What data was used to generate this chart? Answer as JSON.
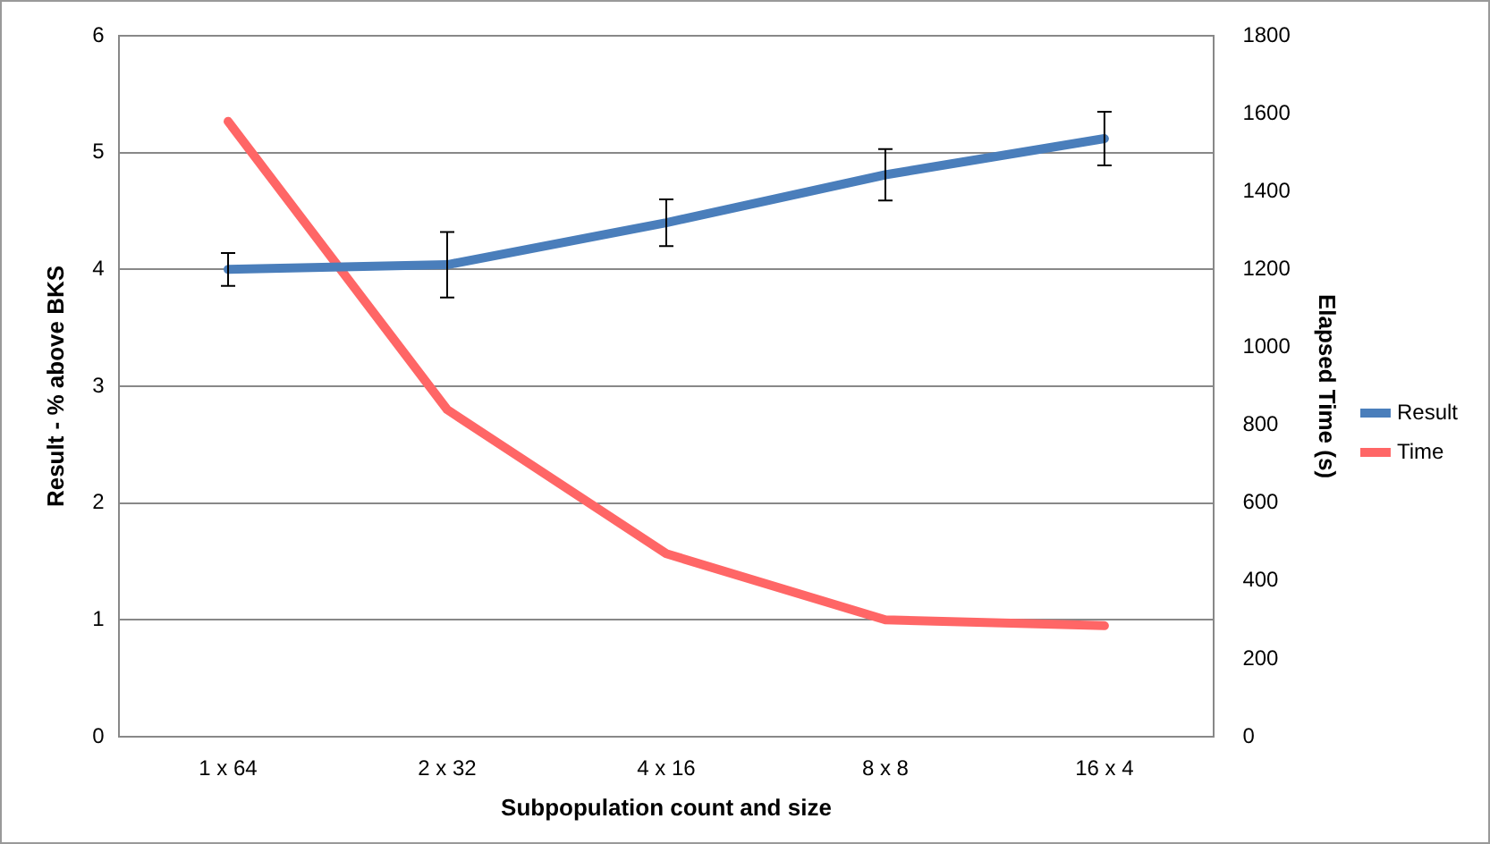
{
  "chart_data": {
    "type": "line",
    "xlabel": "Subpopulation count and size",
    "ylabel": "Result - % above BKS",
    "y2label": "Elapsed Time (s)",
    "categories": [
      "1 x 64",
      "2 x 32",
      "4 x 16",
      "8 x 8",
      "16 x 4"
    ],
    "series": [
      {
        "name": "Result",
        "color": "#4a7ebb",
        "values": [
          4.0,
          4.04,
          4.4,
          4.81,
          5.12
        ],
        "errors": [
          0.14,
          0.28,
          0.2,
          0.22,
          0.23
        ]
      },
      {
        "name": "Time",
        "color": "#ff6666",
        "axis": "y2",
        "values": [
          1580,
          840,
          470,
          300,
          285
        ]
      }
    ],
    "ylim": [
      0,
      6
    ],
    "yticks": [
      0,
      1,
      2,
      3,
      4,
      5,
      6
    ],
    "y2lim": [
      0,
      1800
    ],
    "y2ticks": [
      0,
      200,
      400,
      600,
      800,
      1000,
      1200,
      1400,
      1600,
      1800
    ],
    "grid": "y",
    "legend": "right",
    "marker": "none",
    "line_style": "solid"
  }
}
